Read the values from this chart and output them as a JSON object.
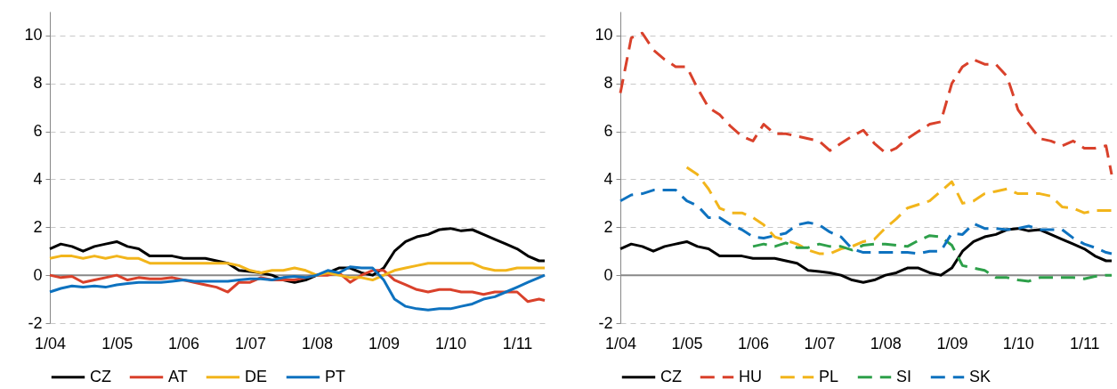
{
  "chart_data": [
    {
      "type": "line",
      "x": [
        "2004-01",
        "2004-03",
        "2004-05",
        "2004-07",
        "2004-09",
        "2004-11",
        "2005-01",
        "2005-03",
        "2005-05",
        "2005-07",
        "2005-09",
        "2005-11",
        "2006-01",
        "2006-03",
        "2006-05",
        "2006-07",
        "2006-09",
        "2006-11",
        "2007-01",
        "2007-03",
        "2007-05",
        "2007-07",
        "2007-09",
        "2007-11",
        "2008-01",
        "2008-03",
        "2008-05",
        "2008-07",
        "2008-09",
        "2008-11",
        "2009-01",
        "2009-03",
        "2009-05",
        "2009-07",
        "2009-09",
        "2009-11",
        "2010-01",
        "2010-03",
        "2010-05",
        "2010-07",
        "2010-09",
        "2010-11",
        "2011-01",
        "2011-03",
        "2011-05",
        "2011-06"
      ],
      "series": [
        {
          "name": "CZ",
          "color": "#000000",
          "values": [
            1.1,
            1.3,
            1.2,
            1.0,
            1.2,
            1.3,
            1.4,
            1.2,
            1.1,
            0.8,
            0.8,
            0.8,
            0.7,
            0.7,
            0.7,
            0.6,
            0.5,
            0.2,
            0.15,
            0.1,
            0.0,
            -0.2,
            -0.3,
            -0.2,
            0.0,
            0.1,
            0.3,
            0.3,
            0.1,
            0.0,
            0.3,
            1.0,
            1.4,
            1.6,
            1.7,
            1.9,
            1.95,
            1.85,
            1.9,
            1.7,
            1.5,
            1.3,
            1.1,
            0.8,
            0.6,
            0.6
          ]
        },
        {
          "name": "AT",
          "color": "#d9412b",
          "values": [
            0.0,
            -0.1,
            -0.05,
            -0.3,
            -0.2,
            -0.1,
            0.0,
            -0.2,
            -0.1,
            -0.15,
            -0.15,
            -0.1,
            -0.2,
            -0.3,
            -0.4,
            -0.5,
            -0.7,
            -0.3,
            -0.3,
            -0.1,
            -0.2,
            -0.2,
            -0.2,
            -0.1,
            0.0,
            0.0,
            0.1,
            -0.3,
            0.0,
            0.2,
            0.2,
            -0.2,
            -0.4,
            -0.6,
            -0.7,
            -0.6,
            -0.6,
            -0.7,
            -0.7,
            -0.8,
            -0.7,
            -0.7,
            -0.7,
            -1.1,
            -1.0,
            -1.05
          ]
        },
        {
          "name": "DE",
          "color": "#f2b51b",
          "values": [
            0.7,
            0.8,
            0.8,
            0.7,
            0.8,
            0.7,
            0.8,
            0.7,
            0.7,
            0.5,
            0.5,
            0.5,
            0.5,
            0.5,
            0.5,
            0.5,
            0.5,
            0.4,
            0.2,
            0.1,
            0.2,
            0.2,
            0.3,
            0.2,
            0.0,
            0.1,
            0.0,
            -0.1,
            -0.1,
            -0.2,
            0.0,
            0.2,
            0.3,
            0.4,
            0.5,
            0.5,
            0.5,
            0.5,
            0.5,
            0.3,
            0.2,
            0.2,
            0.3,
            0.3,
            0.3,
            0.3
          ]
        },
        {
          "name": "PT",
          "color": "#0e72bf",
          "values": [
            -0.7,
            -0.55,
            -0.45,
            -0.5,
            -0.45,
            -0.5,
            -0.4,
            -0.35,
            -0.3,
            -0.3,
            -0.3,
            -0.25,
            -0.2,
            -0.25,
            -0.25,
            -0.25,
            -0.25,
            -0.2,
            -0.15,
            -0.15,
            -0.2,
            -0.1,
            -0.05,
            -0.1,
            0.0,
            0.2,
            0.1,
            0.35,
            0.3,
            0.3,
            -0.2,
            -1.0,
            -1.3,
            -1.4,
            -1.45,
            -1.4,
            -1.4,
            -1.3,
            -1.2,
            -1.0,
            -0.9,
            -0.7,
            -0.5,
            -0.3,
            -0.1,
            0.0
          ]
        }
      ],
      "xlim": [
        "2004-01",
        "2011-06"
      ],
      "xticks": [
        {
          "value": "2004-01",
          "label": "1/04"
        },
        {
          "value": "2005-01",
          "label": "1/05"
        },
        {
          "value": "2006-01",
          "label": "1/06"
        },
        {
          "value": "2007-01",
          "label": "1/07"
        },
        {
          "value": "2008-01",
          "label": "1/08"
        },
        {
          "value": "2009-01",
          "label": "1/09"
        },
        {
          "value": "2010-01",
          "label": "1/10"
        },
        {
          "value": "2011-01",
          "label": "1/11"
        }
      ],
      "ylim": [
        -2,
        11
      ],
      "yticks": [
        -2,
        0,
        2,
        4,
        6,
        8,
        10
      ],
      "grid": "y",
      "legend": "bottom",
      "line_style": "solid",
      "ref_lines": [
        {
          "axis": "y",
          "value": 0,
          "color": "#888888"
        }
      ]
    },
    {
      "type": "line",
      "x": [
        "2004-01",
        "2004-03",
        "2004-05",
        "2004-07",
        "2004-09",
        "2004-11",
        "2005-01",
        "2005-03",
        "2005-05",
        "2005-07",
        "2005-09",
        "2005-11",
        "2006-01",
        "2006-03",
        "2006-05",
        "2006-07",
        "2006-09",
        "2006-11",
        "2007-01",
        "2007-03",
        "2007-05",
        "2007-07",
        "2007-09",
        "2007-11",
        "2008-01",
        "2008-03",
        "2008-05",
        "2008-07",
        "2008-09",
        "2008-11",
        "2009-01",
        "2009-03",
        "2009-05",
        "2009-07",
        "2009-09",
        "2009-11",
        "2010-01",
        "2010-03",
        "2010-05",
        "2010-07",
        "2010-09",
        "2010-11",
        "2011-01",
        "2011-03",
        "2011-05",
        "2011-06"
      ],
      "series": [
        {
          "name": "CZ",
          "color": "#000000",
          "line_style": "solid",
          "values": [
            1.1,
            1.3,
            1.2,
            1.0,
            1.2,
            1.3,
            1.4,
            1.2,
            1.1,
            0.8,
            0.8,
            0.8,
            0.7,
            0.7,
            0.7,
            0.6,
            0.5,
            0.2,
            0.15,
            0.1,
            0.0,
            -0.2,
            -0.3,
            -0.2,
            0.0,
            0.1,
            0.3,
            0.3,
            0.1,
            0.0,
            0.3,
            1.0,
            1.4,
            1.6,
            1.7,
            1.9,
            1.95,
            1.85,
            1.9,
            1.7,
            1.5,
            1.3,
            1.1,
            0.8,
            0.6,
            0.6
          ]
        },
        {
          "name": "HU",
          "color": "#d9412b",
          "line_style": "dashed",
          "values": [
            7.6,
            9.9,
            10.1,
            9.4,
            9.0,
            8.7,
            8.7,
            7.8,
            7.0,
            6.7,
            6.2,
            5.8,
            5.6,
            6.3,
            5.9,
            5.9,
            5.8,
            5.7,
            5.6,
            5.2,
            5.5,
            5.8,
            6.05,
            5.5,
            5.1,
            5.3,
            5.7,
            6.0,
            6.3,
            6.4,
            8.0,
            8.7,
            9.0,
            8.8,
            8.8,
            8.3,
            6.9,
            6.3,
            5.7,
            5.6,
            5.4,
            5.6,
            5.3,
            5.3,
            5.4,
            4.2
          ]
        },
        {
          "name": "PL",
          "color": "#f2b51b",
          "line_style": "dashed",
          "values": [
            null,
            null,
            null,
            null,
            null,
            null,
            4.5,
            4.2,
            3.6,
            2.8,
            2.6,
            2.6,
            2.4,
            2.1,
            1.6,
            1.45,
            1.3,
            1.05,
            0.9,
            0.9,
            1.1,
            1.2,
            1.4,
            1.5,
            1.97,
            2.35,
            2.8,
            2.95,
            3.1,
            3.5,
            3.9,
            3.0,
            3.1,
            3.4,
            3.5,
            3.6,
            3.4,
            3.4,
            3.4,
            3.3,
            2.85,
            2.8,
            2.6,
            2.7,
            2.7,
            2.7
          ]
        },
        {
          "name": "SI",
          "color": "#2ea04a",
          "line_style": "dashed",
          "values": [
            null,
            null,
            null,
            null,
            null,
            null,
            null,
            null,
            null,
            null,
            null,
            null,
            1.2,
            1.3,
            1.2,
            1.35,
            1.15,
            1.15,
            1.3,
            1.2,
            1.2,
            1.05,
            1.25,
            1.3,
            1.3,
            1.25,
            1.2,
            1.45,
            1.65,
            1.6,
            1.25,
            0.4,
            0.3,
            0.2,
            -0.1,
            -0.1,
            -0.2,
            -0.25,
            -0.1,
            -0.1,
            -0.1,
            -0.1,
            -0.15,
            -0.05,
            0.0,
            0.0
          ]
        },
        {
          "name": "SK",
          "color": "#0e72bf",
          "line_style": "dashed",
          "values": [
            3.1,
            3.35,
            3.4,
            3.55,
            3.55,
            3.55,
            3.1,
            2.9,
            2.4,
            2.4,
            2.1,
            1.9,
            1.6,
            1.55,
            1.65,
            1.75,
            2.1,
            2.2,
            2.1,
            1.8,
            1.6,
            1.1,
            0.95,
            0.95,
            0.95,
            0.95,
            0.95,
            0.9,
            1.0,
            1.0,
            1.75,
            1.7,
            2.15,
            1.95,
            1.95,
            1.9,
            1.95,
            2.05,
            1.9,
            1.9,
            1.9,
            1.55,
            1.3,
            1.15,
            0.95,
            0.9
          ]
        }
      ],
      "xlim": [
        "2004-01",
        "2011-06"
      ],
      "xticks": [
        {
          "value": "2004-01",
          "label": "1/04"
        },
        {
          "value": "2005-01",
          "label": "1/05"
        },
        {
          "value": "2006-01",
          "label": "1/06"
        },
        {
          "value": "2007-01",
          "label": "1/07"
        },
        {
          "value": "2008-01",
          "label": "1/08"
        },
        {
          "value": "2009-01",
          "label": "1/09"
        },
        {
          "value": "2010-01",
          "label": "1/10"
        },
        {
          "value": "2011-01",
          "label": "1/11"
        }
      ],
      "ylim": [
        -2,
        11
      ],
      "yticks": [
        -2,
        0,
        2,
        4,
        6,
        8,
        10
      ],
      "grid": "y",
      "legend": "bottom",
      "ref_lines": [
        {
          "axis": "y",
          "value": 0,
          "color": "#888888"
        }
      ]
    }
  ]
}
